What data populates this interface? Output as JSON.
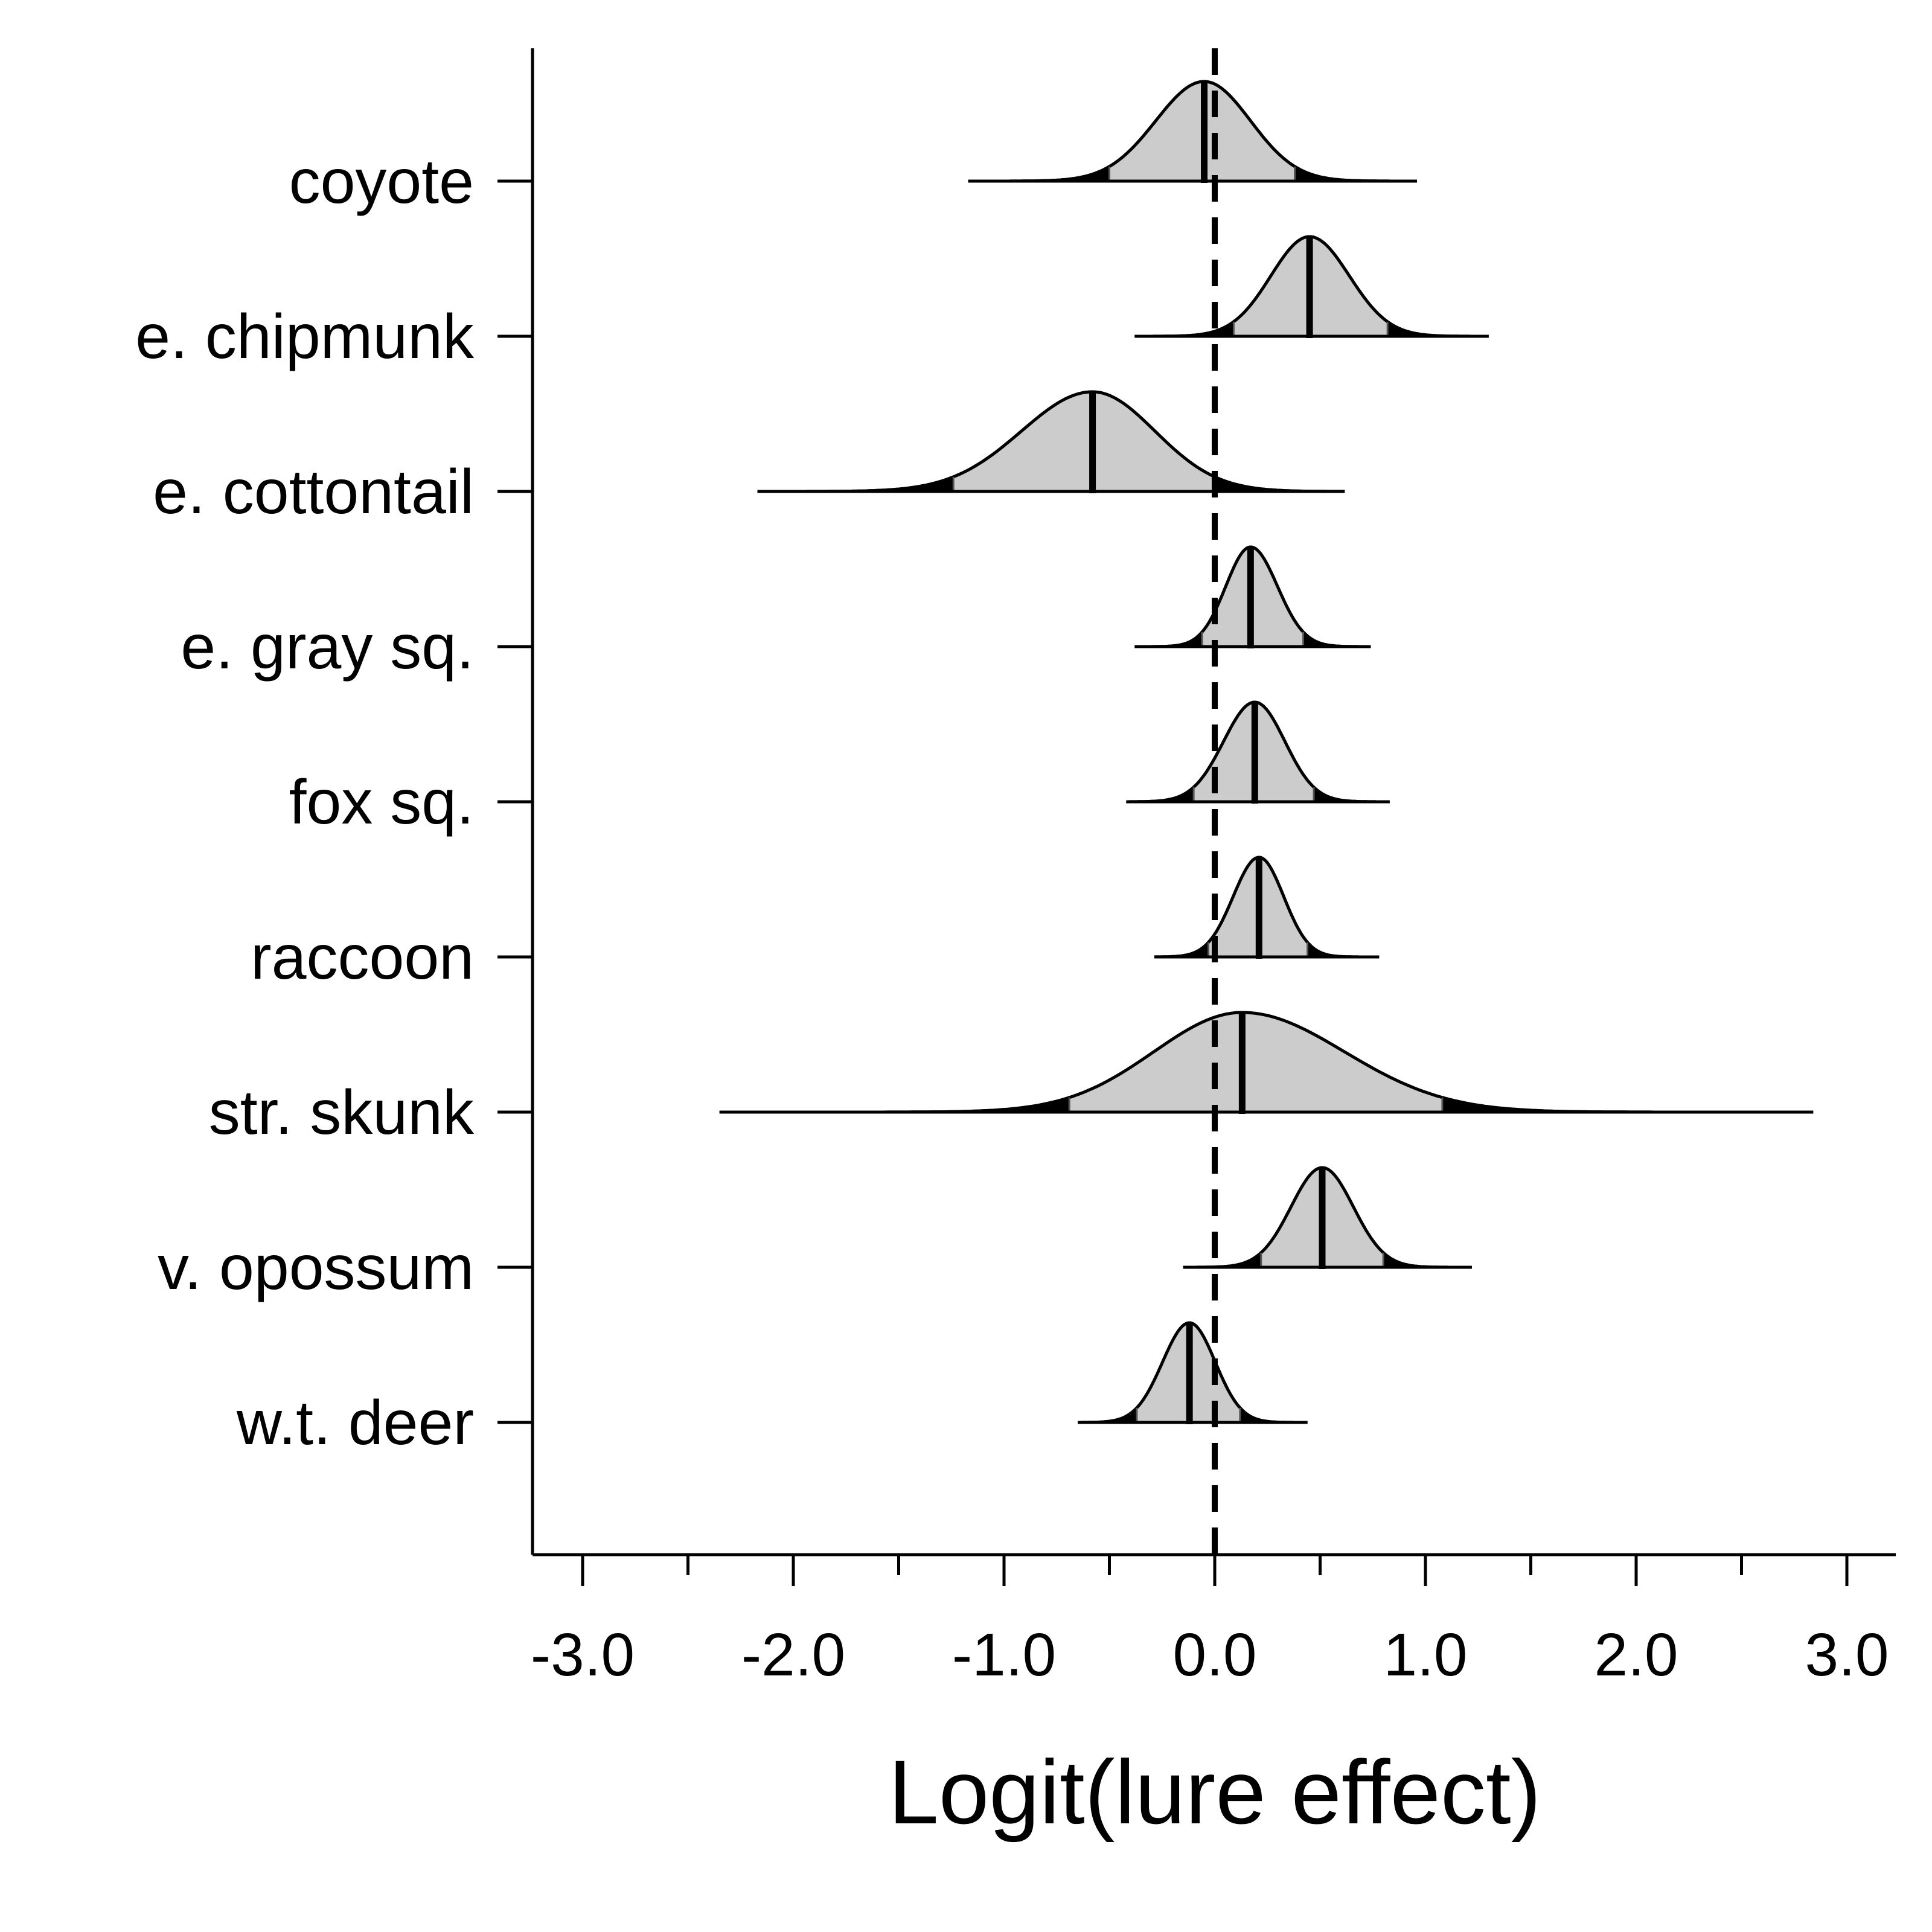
{
  "chart_data": {
    "type": "density-ridge",
    "xlabel": "Logit(lure effect)",
    "xlim": [
      -3.25,
      3.25
    ],
    "x_ticks": [
      -3.0,
      -2.0,
      -1.0,
      0.0,
      1.0,
      2.0,
      3.0
    ],
    "x_tick_labels": [
      "-3.0",
      "-2.0",
      "-1.0",
      "0.0",
      "1.0",
      "2.0",
      "3.0"
    ],
    "x_minor_ticks": [
      -2.5,
      -1.5,
      -0.5,
      0.5,
      1.5,
      2.5
    ],
    "reference_line": 0.0,
    "shade_color": "#cccccc",
    "tail_color": "#000000",
    "categories": [
      "coyote",
      "e. chipmunk",
      "e. cottontail",
      "e. gray sq.",
      "fox sq.",
      "raccoon",
      "str. skunk",
      "v. opossum",
      "w.t. deer"
    ],
    "series": [
      {
        "category": "coyote",
        "median": -0.05,
        "ci": [
          -0.5,
          0.38
        ],
        "range": [
          -1.17,
          0.96
        ]
      },
      {
        "category": "e. chipmunk",
        "median": 0.45,
        "ci": [
          0.09,
          0.82
        ],
        "range": [
          -0.38,
          1.3
        ]
      },
      {
        "category": "e. cottontail",
        "median": -0.58,
        "ci": [
          -1.24,
          0.0
        ],
        "range": [
          -2.17,
          0.61
        ]
      },
      {
        "category": "e. gray sq.",
        "median": 0.17,
        "ci": [
          -0.06,
          0.42
        ],
        "range": [
          -0.38,
          0.74
        ]
      },
      {
        "category": "fox sq.",
        "median": 0.19,
        "ci": [
          -0.1,
          0.47
        ],
        "range": [
          -0.42,
          0.83
        ]
      },
      {
        "category": "raccoon",
        "median": 0.21,
        "ci": [
          -0.03,
          0.44
        ],
        "range": [
          -0.28,
          0.78
        ]
      },
      {
        "category": "str. skunk",
        "median": 0.13,
        "ci": [
          -0.69,
          1.08
        ],
        "range": [
          -2.35,
          2.84
        ]
      },
      {
        "category": "v. opossum",
        "median": 0.51,
        "ci": [
          0.22,
          0.8
        ],
        "range": [
          -0.15,
          1.22
        ]
      },
      {
        "category": "w.t. deer",
        "median": -0.12,
        "ci": [
          -0.37,
          0.12
        ],
        "range": [
          -0.65,
          0.44
        ]
      }
    ]
  }
}
